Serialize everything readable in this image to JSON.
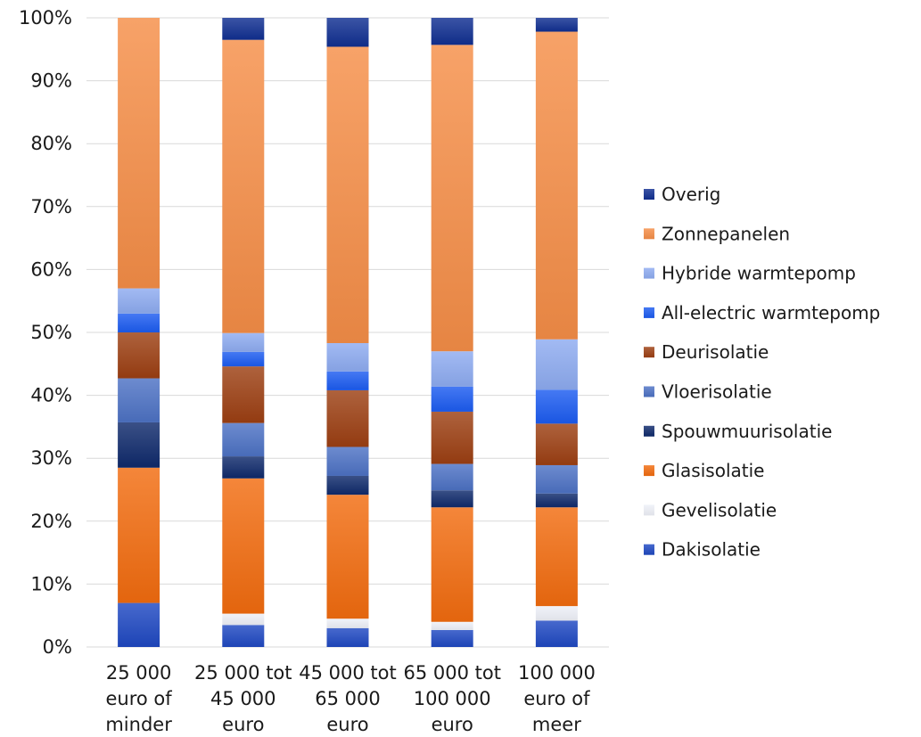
{
  "chart_data": {
    "type": "bar",
    "stacked": true,
    "percent": true,
    "title": "",
    "xlabel": "",
    "ylabel": "",
    "ylim": [
      0,
      100
    ],
    "y_ticks": [
      "0%",
      "10%",
      "20%",
      "30%",
      "40%",
      "50%",
      "60%",
      "70%",
      "80%",
      "90%",
      "100%"
    ],
    "grid": "horizontal",
    "legend_position": "right",
    "categories": [
      [
        "25 000",
        "euro of",
        "minder"
      ],
      [
        "25 000 tot",
        "45 000",
        "euro"
      ],
      [
        "45 000 tot",
        "65 000",
        "euro"
      ],
      [
        "65 000 tot",
        "100 000",
        "euro"
      ],
      [
        "100 000",
        "euro of",
        "meer"
      ]
    ],
    "series": [
      {
        "name": "Dakisolatie",
        "color": "#1f48c2",
        "values": [
          7.0,
          3.5,
          3.0,
          2.7,
          4.2
        ]
      },
      {
        "name": "Gevelisolatie",
        "color": "#eef0f8",
        "values": [
          0.0,
          1.8,
          1.5,
          1.3,
          2.3
        ]
      },
      {
        "name": "Glasisolatie",
        "color": "#f26b0f",
        "values": [
          21.5,
          21.5,
          19.7,
          18.2,
          15.7
        ]
      },
      {
        "name": "Spouwmuurisolatie",
        "color": "#0f2a6b",
        "values": [
          7.2,
          3.5,
          3.0,
          2.7,
          2.2
        ]
      },
      {
        "name": "Vloerisolatie",
        "color": "#4d72c4",
        "values": [
          7.0,
          5.3,
          4.6,
          4.2,
          4.5
        ]
      },
      {
        "name": "Deurisolatie",
        "color": "#9c3f12",
        "values": [
          7.3,
          9.0,
          9.0,
          8.3,
          6.6
        ]
      },
      {
        "name": "All-electric warmtepomp",
        "color": "#1c5cf0",
        "values": [
          3.0,
          2.3,
          3.0,
          4.0,
          5.4
        ]
      },
      {
        "name": "Hybride warmtepomp",
        "color": "#8eabf0",
        "values": [
          4.0,
          3.0,
          4.5,
          5.6,
          8.0
        ]
      },
      {
        "name": "Zonnepanelen",
        "color": "#f58d47",
        "values": [
          43.0,
          46.6,
          47.1,
          48.7,
          48.9
        ]
      },
      {
        "name": "Overig",
        "color": "#102f91",
        "values": [
          0.0,
          3.5,
          4.6,
          4.3,
          2.2
        ]
      }
    ]
  }
}
